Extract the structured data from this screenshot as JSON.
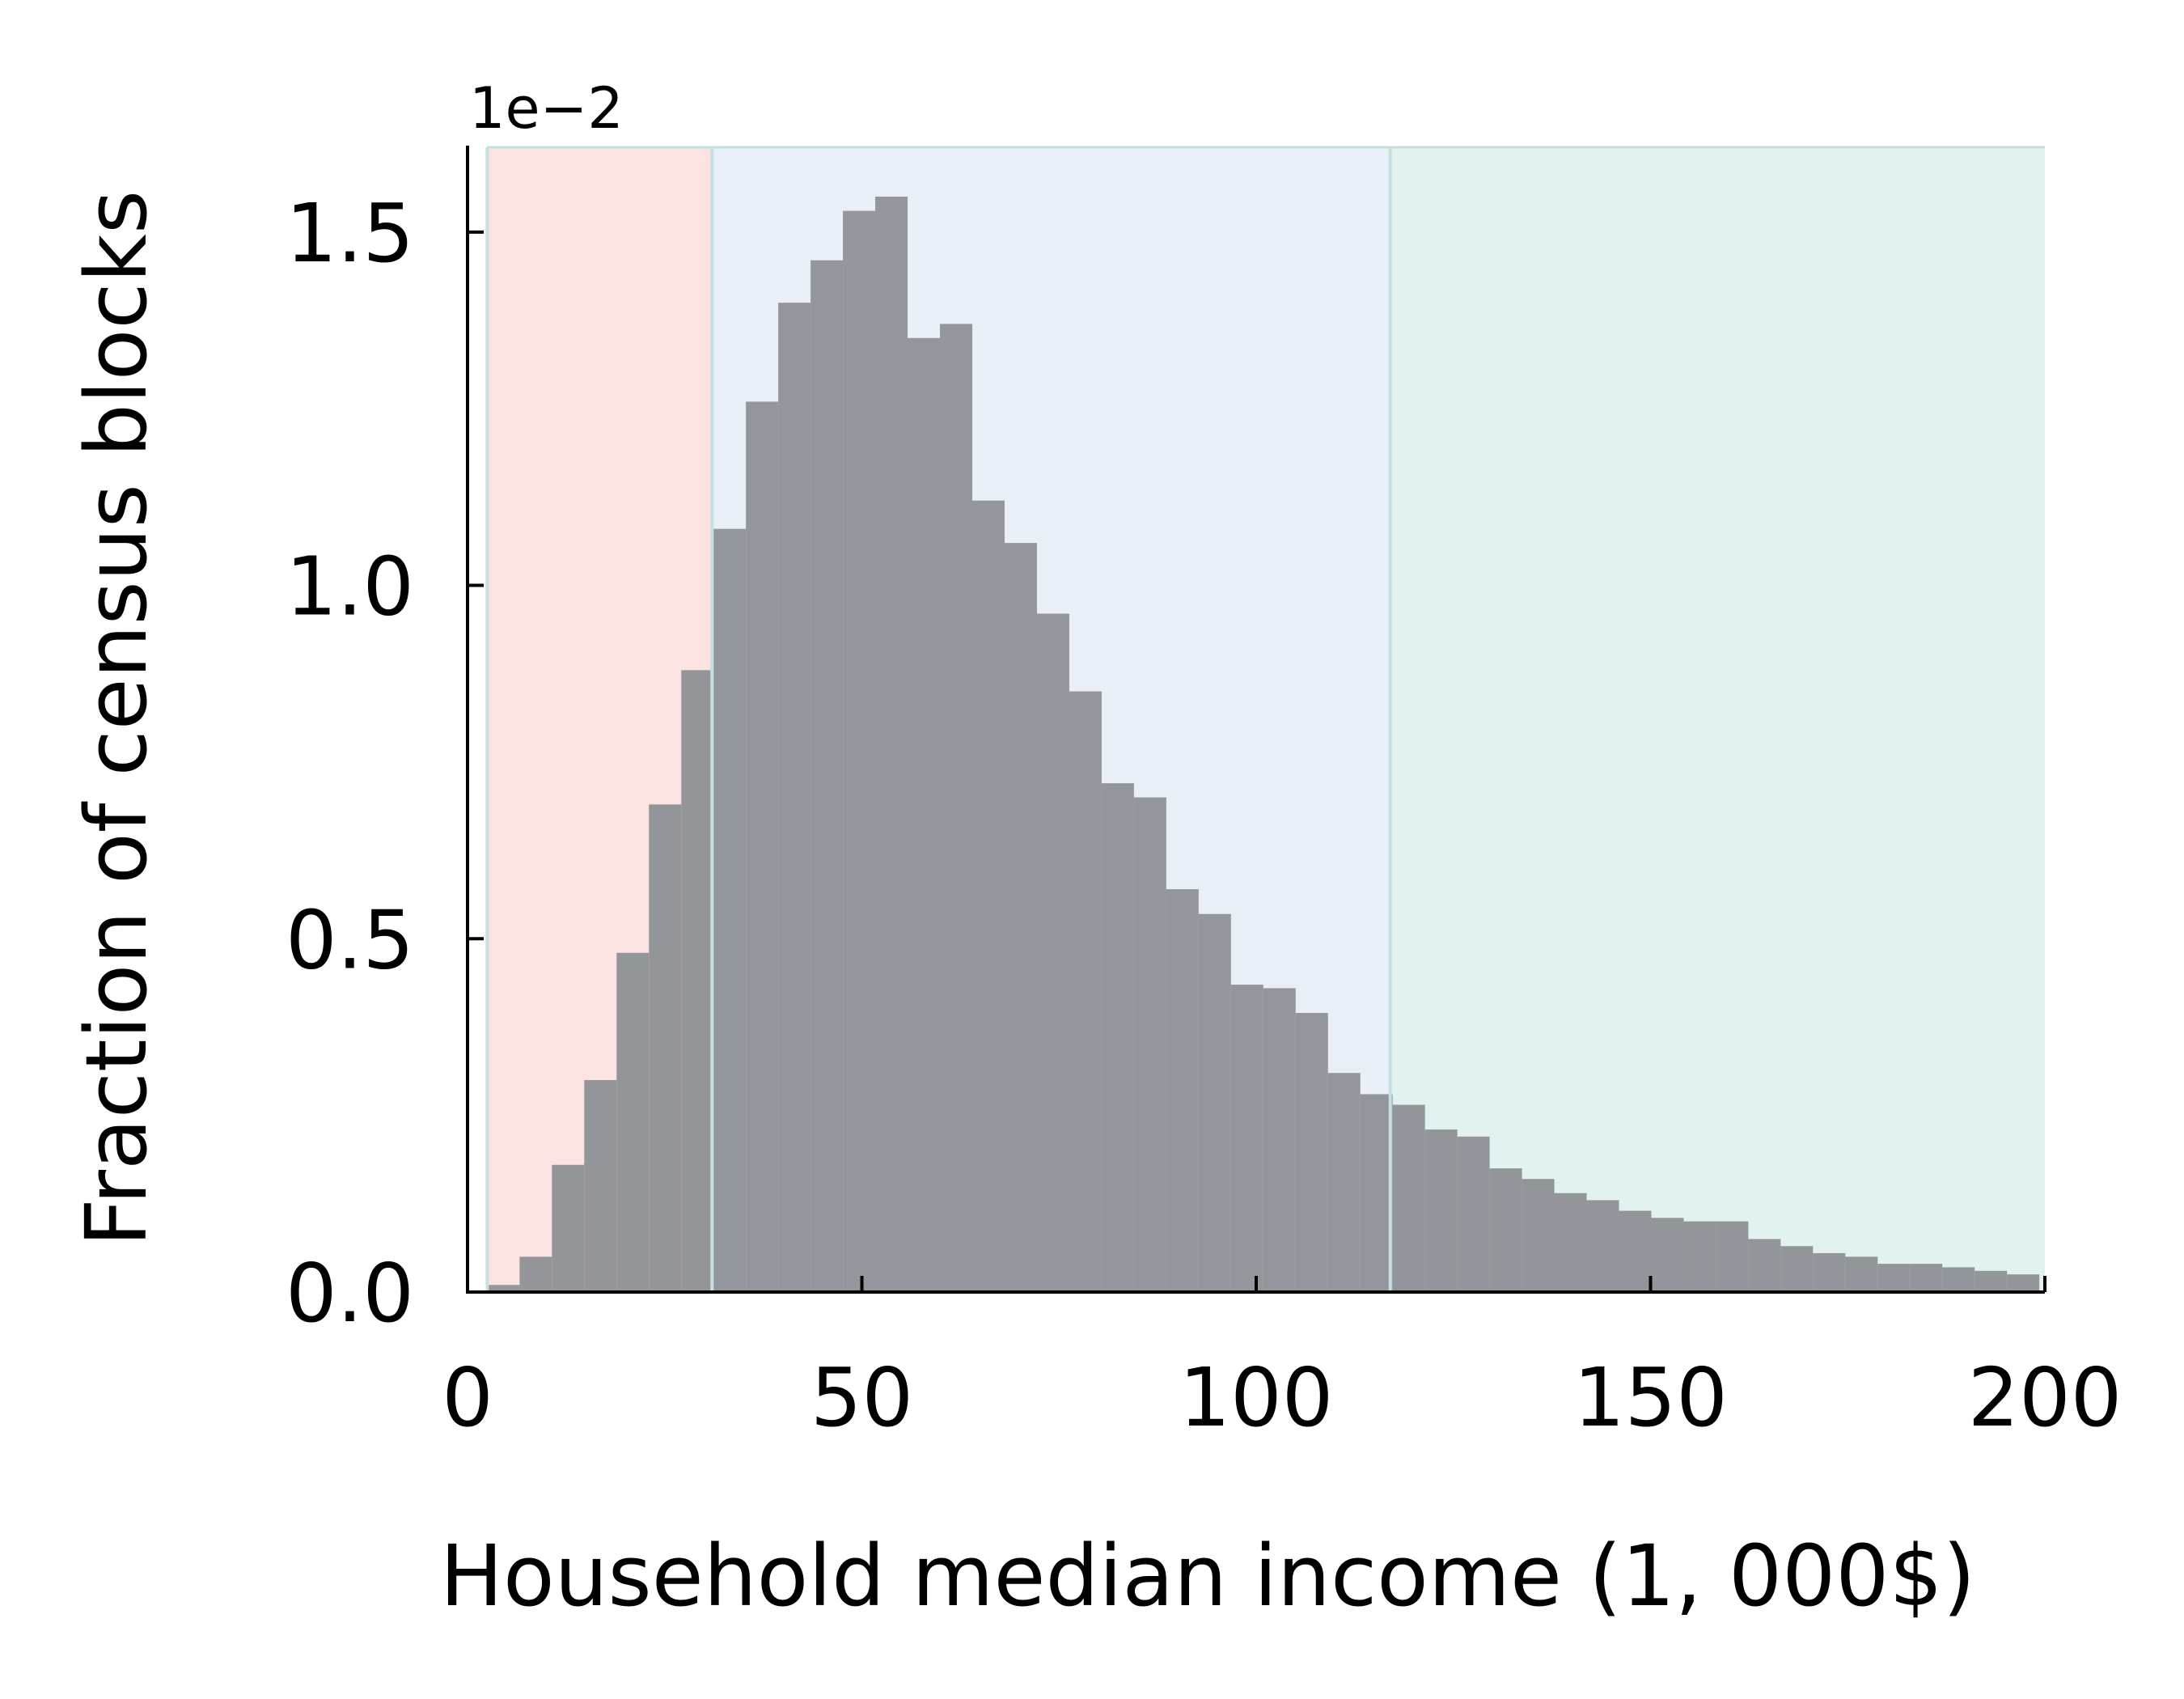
{
  "chart_data": {
    "type": "bar",
    "title": "",
    "xlabel": "Household median income (1, 000$)",
    "ylabel": "Fraction of census blocks",
    "y_offset_label": "1e−2",
    "xlim": [
      0,
      200
    ],
    "ylim": [
      0,
      1.62
    ],
    "xticks": [
      0,
      50,
      100,
      150,
      200
    ],
    "xtick_labels": [
      "0",
      "50",
      "100",
      "150",
      "200"
    ],
    "yticks": [
      0.0,
      0.5,
      1.0,
      1.5
    ],
    "ytick_labels": [
      "0.0",
      "0.5",
      "1.0",
      "1.5"
    ],
    "grid": false,
    "bar_color": "#8c8f93",
    "regions": [
      {
        "x": [
          2.5,
          31
        ],
        "color": "#fbe3e2"
      },
      {
        "x": [
          31,
          117
        ],
        "color": "#e8eff7"
      },
      {
        "x": [
          117,
          200
        ],
        "color": "#e2f2ee"
      }
    ],
    "region_boundary_color": "#c6dfe2",
    "bins": {
      "start": 2.5,
      "width": 4.1,
      "values": [
        0.01,
        0.05,
        0.18,
        0.3,
        0.48,
        0.69,
        0.88,
        1.08,
        1.26,
        1.4,
        1.46,
        1.53,
        1.55,
        1.35,
        1.37,
        1.12,
        1.06,
        0.96,
        0.85,
        0.72,
        0.7,
        0.57,
        0.535,
        0.435,
        0.43,
        0.395,
        0.31,
        0.28,
        0.265,
        0.23,
        0.22,
        0.175,
        0.16,
        0.14,
        0.13,
        0.115,
        0.105,
        0.1,
        0.1,
        0.075,
        0.065,
        0.055,
        0.05,
        0.04,
        0.04,
        0.035,
        0.03,
        0.025
      ]
    }
  }
}
